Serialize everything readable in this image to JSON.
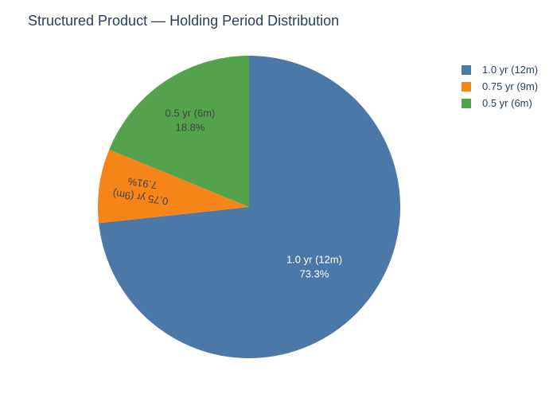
{
  "chart_data": {
    "type": "pie",
    "title": "Structured Product — Holding Period Distribution",
    "categories": [
      "1.0 yr (12m)",
      "0.75 yr (9m)",
      "0.5 yr (6m)"
    ],
    "values": [
      73.3,
      7.91,
      18.8
    ],
    "percent_labels": [
      "73.3%",
      "7.91%",
      "18.8%"
    ],
    "colors": [
      "#4c78a8",
      "#f58518",
      "#54a24b"
    ],
    "label_colors": [
      "#ffffff",
      "#444444",
      "#444444"
    ],
    "legend_position": "top-right",
    "direction": "clockwise",
    "start": "top"
  }
}
